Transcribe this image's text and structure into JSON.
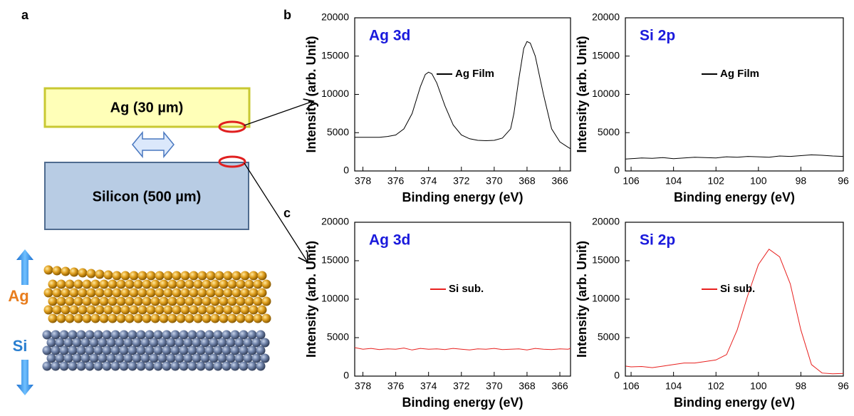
{
  "panel_labels": [
    "a",
    "b",
    "c"
  ],
  "diagram": {
    "ag_layer": "Ag (30 µm)",
    "si_layer": "Silicon (500 µm)",
    "ag_atoms": "Ag",
    "si_atoms": "Si"
  },
  "chart_data": [
    {
      "type": "line",
      "title": "Ag 3d",
      "xlabel": "Binding energy (eV)",
      "ylabel": "Intensity (arb. Unit)",
      "xlim": [
        378.5,
        365.35
      ],
      "ylim": [
        0,
        20000
      ],
      "xticks": [
        378,
        376,
        374,
        372,
        370,
        368,
        366
      ],
      "yticks": [
        0,
        5000,
        10000,
        15000,
        20000
      ],
      "x": [
        378.5,
        378,
        377,
        376.5,
        376,
        375.5,
        375,
        374.5,
        374.2,
        374,
        373.8,
        373.5,
        373,
        372.5,
        372,
        371.5,
        371,
        370.5,
        370,
        369.5,
        369,
        368.8,
        368.5,
        368.2,
        368,
        367.8,
        367.5,
        367,
        366.5,
        366,
        365.5,
        365.35
      ],
      "series": [
        {
          "name": "Ag Film",
          "color": "#000000",
          "values": [
            4400,
            4400,
            4400,
            4500,
            4700,
            5500,
            7500,
            11000,
            12600,
            12900,
            12700,
            11500,
            8500,
            6000,
            4700,
            4200,
            4000,
            3950,
            4000,
            4300,
            5500,
            7500,
            12000,
            16000,
            16900,
            16700,
            15000,
            10000,
            5500,
            3800,
            3100,
            2900
          ]
        }
      ]
    },
    {
      "type": "line",
      "title": "Si 2p",
      "xlabel": "Binding energy (eV)",
      "ylabel": "Intensity (arb. Unit)",
      "xlim": [
        106.27,
        96
      ],
      "ylim": [
        0,
        20000
      ],
      "xticks": [
        106,
        104,
        102,
        100,
        98,
        96
      ],
      "yticks": [
        0,
        5000,
        10000,
        15000,
        20000
      ],
      "x": [
        106.25,
        106,
        105.5,
        105,
        104.5,
        104,
        103.5,
        103,
        102.5,
        102,
        101.5,
        101,
        100.5,
        100,
        99.5,
        99,
        98.5,
        98,
        97.5,
        97,
        96.5,
        96
      ],
      "series": [
        {
          "name": "Ag Film",
          "color": "#000000",
          "values": [
            1550,
            1600,
            1700,
            1650,
            1750,
            1600,
            1700,
            1800,
            1750,
            1700,
            1850,
            1800,
            1900,
            1850,
            1800,
            1950,
            1900,
            2000,
            2100,
            2050,
            1950,
            1900
          ]
        }
      ]
    },
    {
      "type": "line",
      "title": "Ag 3d",
      "xlabel": "Binding energy (eV)",
      "ylabel": "Intensity (arb. Unit)",
      "xlim": [
        378.5,
        365.35
      ],
      "ylim": [
        0,
        20000
      ],
      "xticks": [
        378,
        376,
        374,
        372,
        370,
        368,
        366
      ],
      "yticks": [
        0,
        5000,
        10000,
        15000,
        20000
      ],
      "x": [
        378.5,
        378,
        377.5,
        377,
        376.5,
        376,
        375.5,
        375,
        374.5,
        374,
        373.5,
        373,
        372.5,
        372,
        371.5,
        371,
        370.5,
        370,
        369.5,
        369,
        368.5,
        368,
        367.5,
        367,
        366.5,
        366,
        365.5,
        365.35
      ],
      "series": [
        {
          "name": "Si sub.",
          "color": "#e8201e",
          "values": [
            3700,
            3500,
            3600,
            3450,
            3550,
            3500,
            3650,
            3400,
            3600,
            3500,
            3550,
            3450,
            3600,
            3500,
            3400,
            3550,
            3500,
            3600,
            3450,
            3500,
            3550,
            3400,
            3600,
            3500,
            3450,
            3550,
            3500,
            3600
          ]
        }
      ]
    },
    {
      "type": "line",
      "title": "Si 2p",
      "xlabel": "Binding energy (eV)",
      "ylabel": "Intensity (arb. Unit)",
      "xlim": [
        106.27,
        96
      ],
      "ylim": [
        0,
        20000
      ],
      "xticks": [
        106,
        104,
        102,
        100,
        98,
        96
      ],
      "yticks": [
        0,
        5000,
        10000,
        15000,
        20000
      ],
      "x": [
        106.25,
        106,
        105.5,
        105,
        104.5,
        104,
        103.5,
        103,
        102.5,
        102,
        101.5,
        101,
        100.5,
        100,
        99.5,
        99,
        98.5,
        98,
        97.5,
        97,
        96.5,
        96
      ],
      "series": [
        {
          "name": "Si sub.",
          "color": "#e8201e",
          "values": [
            1300,
            1200,
            1250,
            1100,
            1300,
            1500,
            1700,
            1700,
            1900,
            2100,
            2800,
            6000,
            10500,
            14500,
            16500,
            15500,
            12000,
            6000,
            1500,
            400,
            300,
            350
          ]
        }
      ]
    }
  ]
}
